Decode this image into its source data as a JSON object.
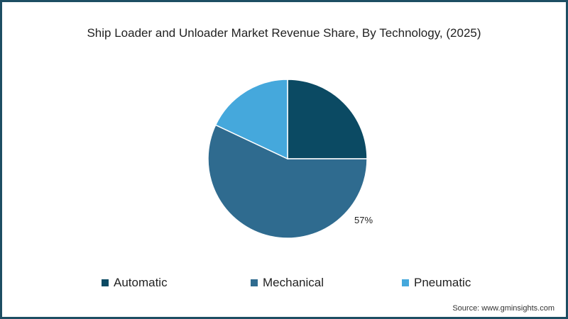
{
  "chart_data": {
    "type": "pie",
    "title": "Ship Loader and Unloader Market Revenue Share, By Technology, (2025)",
    "categories": [
      "Automatic",
      "Mechanical",
      "Pneumatic"
    ],
    "values": [
      25,
      57,
      18
    ],
    "unit": "%",
    "colors": [
      "#0b4a63",
      "#2f6b8f",
      "#45a8dc"
    ],
    "data_labels": [
      {
        "category": "Mechanical",
        "text": "57%"
      }
    ],
    "start_angle": "12 o'clock, clockwise",
    "legend_position": "bottom"
  },
  "chart": {
    "title": "Ship Loader and Unloader Market Revenue Share, By Technology, (2025)",
    "label_mechanical": "57%"
  },
  "legend": {
    "items": [
      {
        "label": "Automatic",
        "color": "#0b4a63"
      },
      {
        "label": "Mechanical",
        "color": "#2f6b8f"
      },
      {
        "label": "Pneumatic",
        "color": "#45a8dc"
      }
    ]
  },
  "source": "Source: www.gminsights.com",
  "colors": {
    "border": "#1d4e63",
    "text": "#222222"
  }
}
